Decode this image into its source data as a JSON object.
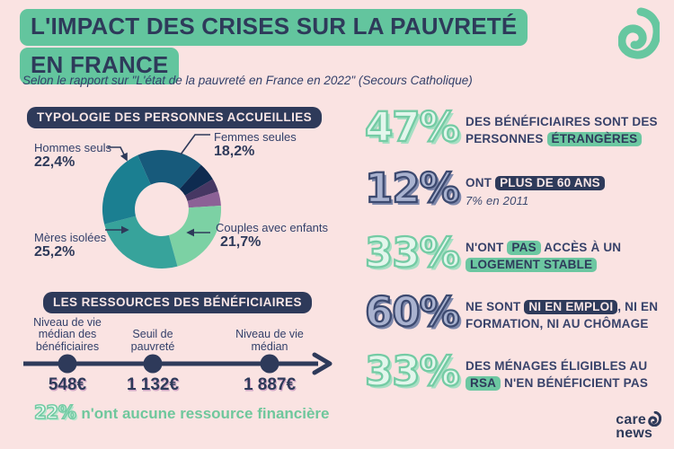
{
  "theme": {
    "background": "#fae3e2",
    "navy": "#2e3a5a",
    "green_highlight": "#63c59e",
    "mint": "#74cba4",
    "periwinkle": "#a9b2cf"
  },
  "header": {
    "title_line1": "L'IMPACT DES CRISES SUR LA PAUVRETÉ",
    "title_line2": "EN FRANCE",
    "subtitle": "Selon le rapport sur \"L'état de la pauvreté en France en 2022\" (Secours Catholique)"
  },
  "brand": {
    "name_line1": "care",
    "name_line2": "news"
  },
  "chart_data": [
    {
      "type": "pie",
      "donut": true,
      "title": "TYPOLOGIE DES PERSONNES ACCUEILLIES",
      "start_angle_deg": -24,
      "segments": [
        {
          "label": "Femmes seules",
          "value": 18.2,
          "pct_display": "18,2%",
          "color": "#175a7b"
        },
        {
          "label": "",
          "value": 5.0,
          "pct_display": "",
          "color": "#0e2b50"
        },
        {
          "label": "",
          "value": 3.6,
          "pct_display": "",
          "color": "#463763"
        },
        {
          "label": "",
          "value": 3.9,
          "pct_display": "",
          "color": "#8c6196"
        },
        {
          "label": "Couples avec enfants",
          "value": 21.7,
          "pct_display": "21,7%",
          "color": "#7cd1a4"
        },
        {
          "label": "Mères isolées",
          "value": 25.2,
          "pct_display": "25,2%",
          "color": "#37a39b"
        },
        {
          "label": "Hommes seuls",
          "value": 22.4,
          "pct_display": "22,4%",
          "color": "#1b7f91"
        }
      ]
    },
    {
      "type": "scale",
      "title": "LES RESSOURCES DES BÉNÉFICIAIRES",
      "points": [
        {
          "label": "Niveau de vie médian des bénéficiaires",
          "value": "548€"
        },
        {
          "label": "Seuil de pauvreté",
          "value": "1 132€"
        },
        {
          "label": "Niveau de vie médian",
          "value": "1 887€"
        }
      ],
      "footnote_number": "22%",
      "footnote_text": "n'ont aucune ressource financière"
    }
  ],
  "stats": [
    {
      "number": "47%",
      "style": "mint",
      "parts": [
        {
          "t": "DES BÉNÉFICIAIRES SONT DES PERSONNES "
        },
        {
          "t": "ÉTRANGÈRES",
          "pill": "green"
        }
      ]
    },
    {
      "number": "12%",
      "style": "blue",
      "parts": [
        {
          "t": "ONT "
        },
        {
          "t": "PLUS DE 60 ANS",
          "pill": "navy"
        }
      ],
      "subtext": "7% en 2011"
    },
    {
      "number": "33%",
      "style": "mint",
      "parts": [
        {
          "t": "N'ONT "
        },
        {
          "t": "PAS",
          "pill": "green"
        },
        {
          "t": " ACCÈS À UN "
        },
        {
          "t": "LOGEMENT STABLE",
          "pill": "green"
        }
      ]
    },
    {
      "number": "60%",
      "style": "blue",
      "parts": [
        {
          "t": "NE SONT "
        },
        {
          "t": "NI EN EMPLOI",
          "pill": "navy"
        },
        {
          "t": ", NI EN FORMATION, NI AU CHÔMAGE"
        }
      ]
    },
    {
      "number": "33%",
      "style": "mint",
      "parts": [
        {
          "t": "DES MÉNAGES ÉLIGIBLES AU "
        },
        {
          "t": "RSA",
          "pill": "green"
        },
        {
          "t": " N'EN BÉNÉFICIENT PAS"
        }
      ]
    }
  ]
}
